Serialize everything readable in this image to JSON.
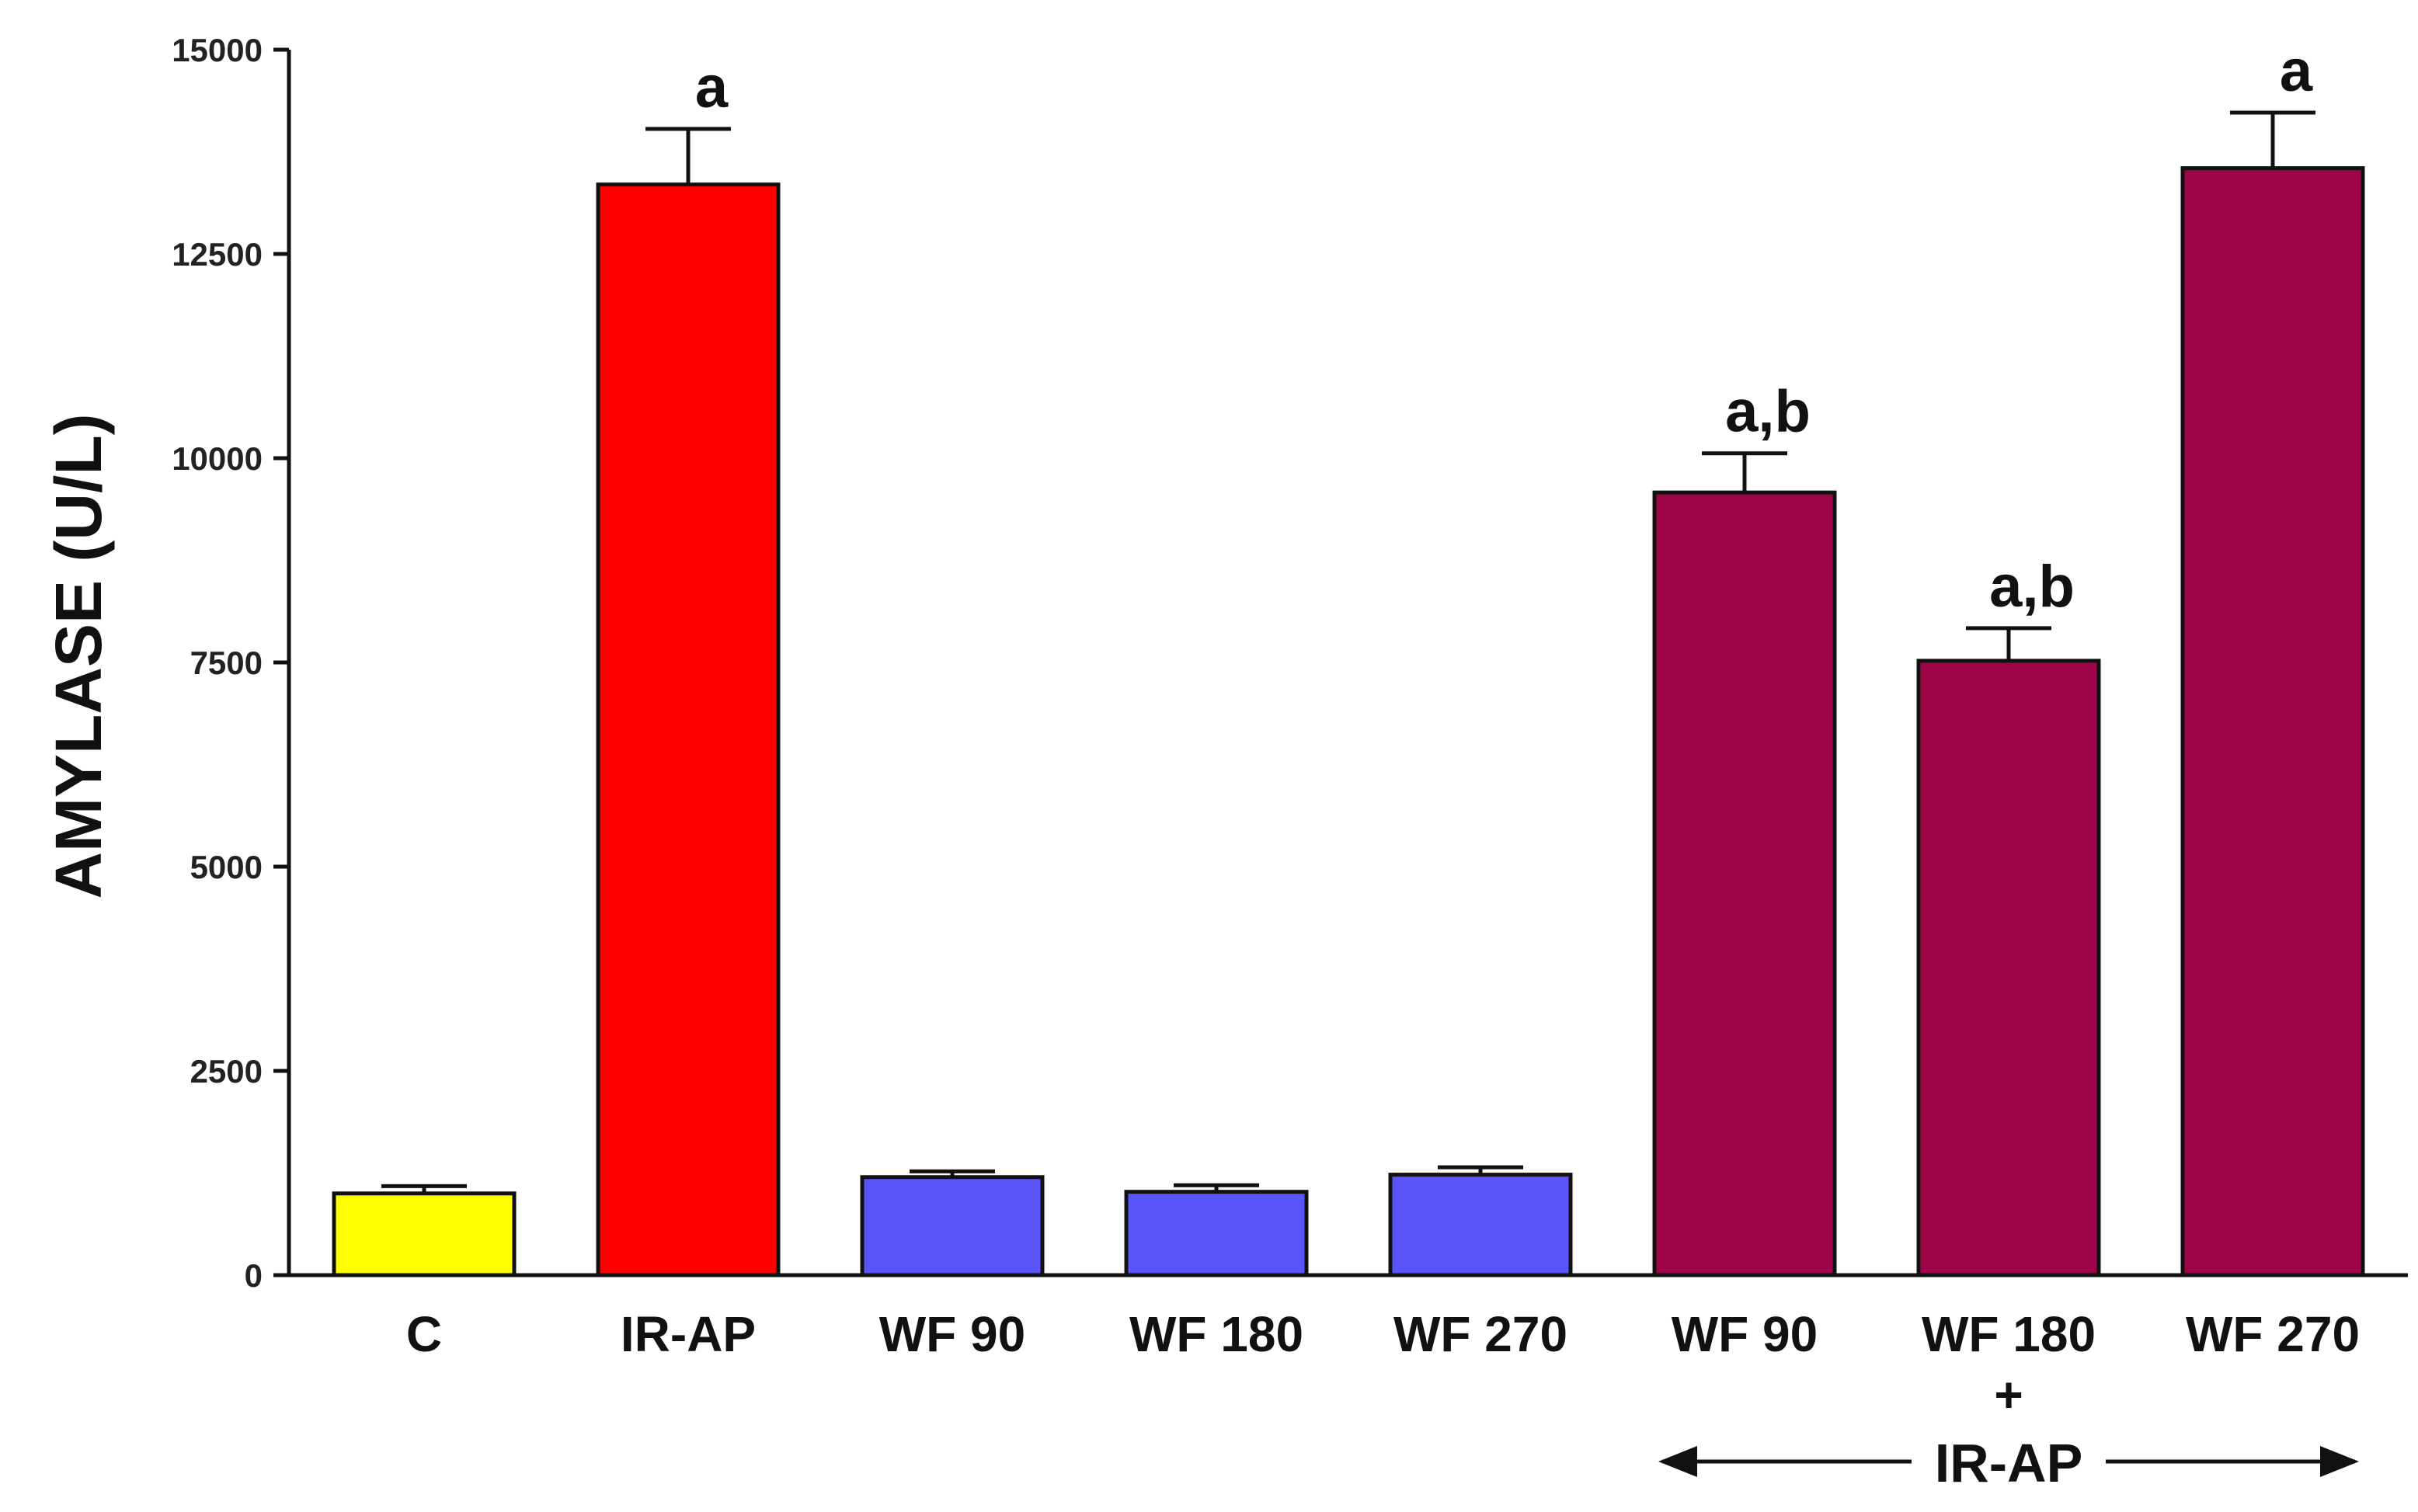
{
  "chart_data": {
    "type": "bar",
    "title": "",
    "xlabel": "",
    "ylabel": "AMYLASE (U/L)",
    "ylim": [
      0,
      15000
    ],
    "yticks": [
      0,
      2500,
      5000,
      7500,
      10000,
      12500,
      15000
    ],
    "categories": [
      "C",
      "IR-AP",
      "WF 90",
      "WF 180",
      "WF 270",
      "WF 90",
      "WF 180",
      "WF 270"
    ],
    "values": [
      1000,
      13350,
      1200,
      1020,
      1230,
      9580,
      7520,
      13550
    ],
    "errors": [
      90,
      680,
      70,
      80,
      90,
      480,
      400,
      680
    ],
    "colors": [
      "#ffff00",
      "#ff0000",
      "#5a55f8",
      "#5a55f8",
      "#5a55f8",
      "#9e0548",
      "#9e0548",
      "#9e0548"
    ],
    "annotations": [
      "",
      "a",
      "",
      "",
      "",
      "a,b",
      "a,b",
      "a"
    ],
    "group": {
      "label": "IR-AP",
      "plus": "+",
      "from_index": 5,
      "to_index": 7
    }
  }
}
